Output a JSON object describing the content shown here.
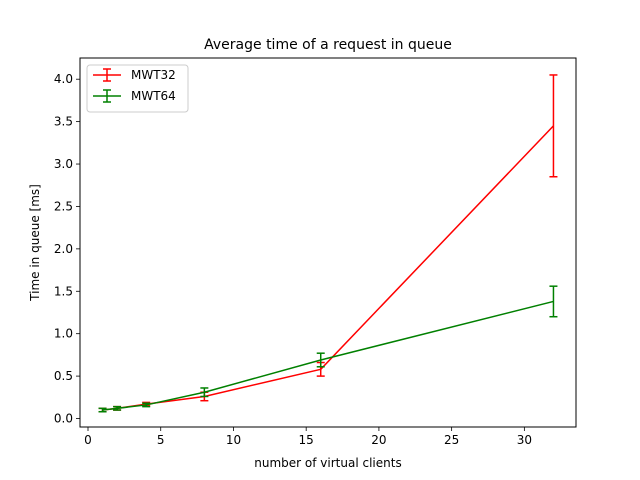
{
  "chart_data": {
    "type": "line",
    "title": "Average time of a request in queue",
    "xlabel": "number of virtual clients",
    "ylabel": "Time in queue [ms]",
    "xlim": [
      -0.55,
      33.55
    ],
    "ylim": [
      -0.1,
      4.25
    ],
    "xticks": [
      0,
      5,
      10,
      15,
      20,
      25,
      30
    ],
    "yticks": [
      0.0,
      0.5,
      1.0,
      1.5,
      2.0,
      2.5,
      3.0,
      3.5,
      4.0
    ],
    "xtick_labels": [
      "0",
      "5",
      "10",
      "15",
      "20",
      "25",
      "30"
    ],
    "ytick_labels": [
      "0.0",
      "0.5",
      "1.0",
      "1.5",
      "2.0",
      "2.5",
      "3.0",
      "3.5",
      "4.0"
    ],
    "legend_position": "upper-left",
    "grid": false,
    "series": [
      {
        "name": "MWT32",
        "color": "#ff0000",
        "x": [
          1,
          2,
          4,
          8,
          16,
          32
        ],
        "y": [
          0.1,
          0.12,
          0.17,
          0.26,
          0.58,
          3.45
        ],
        "yerr": [
          0.02,
          0.02,
          0.02,
          0.05,
          0.08,
          0.6
        ]
      },
      {
        "name": "MWT64",
        "color": "#008000",
        "x": [
          1,
          2,
          4,
          8,
          16,
          32
        ],
        "y": [
          0.1,
          0.12,
          0.16,
          0.31,
          0.69,
          1.38
        ],
        "yerr": [
          0.02,
          0.02,
          0.02,
          0.05,
          0.08,
          0.18
        ]
      }
    ]
  }
}
